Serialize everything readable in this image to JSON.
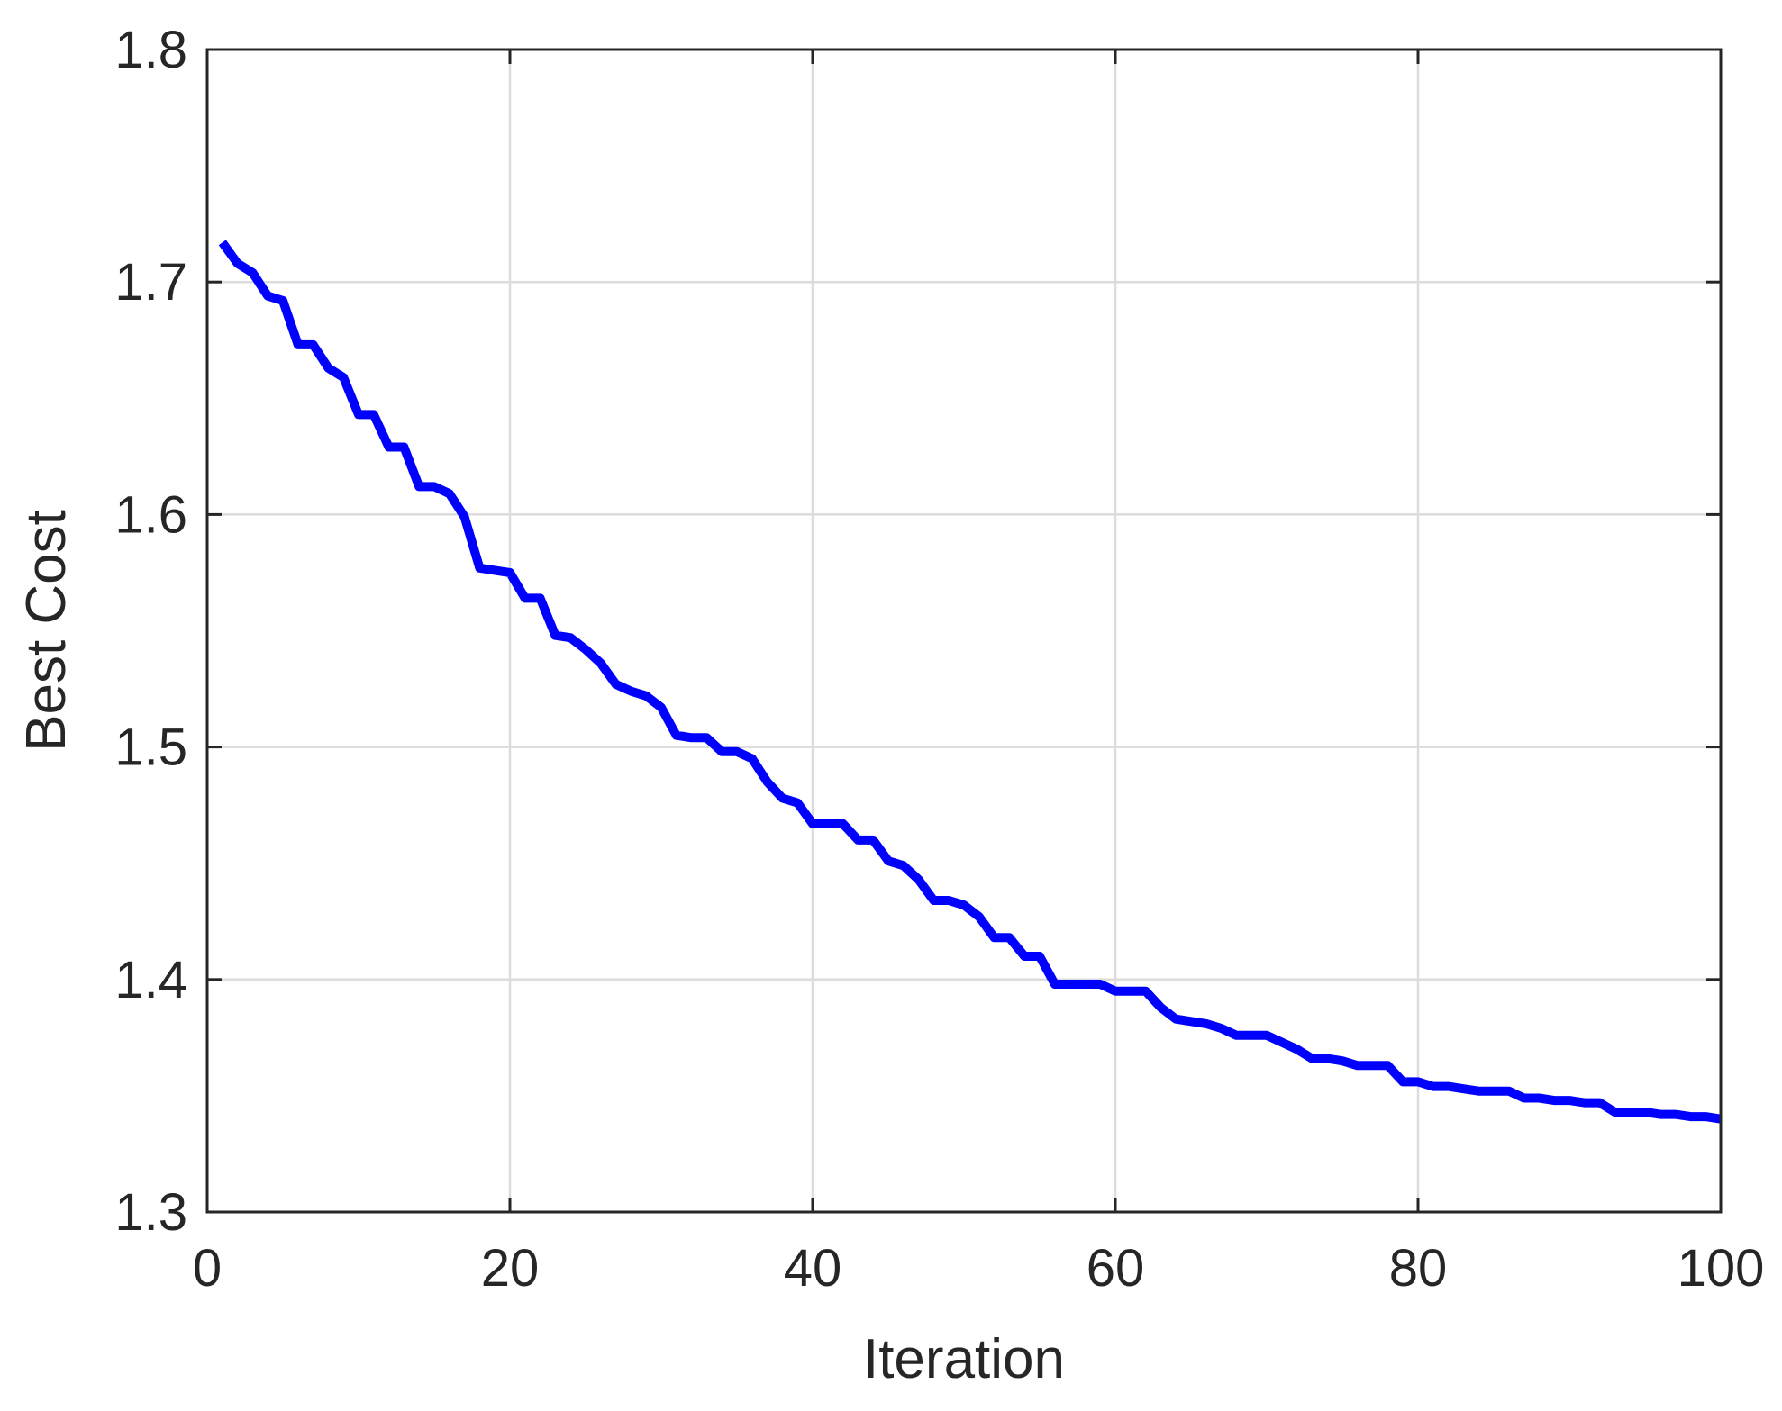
{
  "chart_data": {
    "type": "line",
    "title": "",
    "xlabel": "Iteration",
    "ylabel": "Best Cost",
    "xlim": [
      0,
      100
    ],
    "ylim": [
      1.3,
      1.8
    ],
    "xticks": [
      0,
      20,
      40,
      60,
      80,
      100
    ],
    "yticks": [
      1.3,
      1.4,
      1.5,
      1.6,
      1.7,
      1.8
    ],
    "xtick_labels": [
      "0",
      "20",
      "40",
      "60",
      "80",
      "100"
    ],
    "ytick_labels": [
      "1.3",
      "1.4",
      "1.5",
      "1.6",
      "1.7",
      "1.8"
    ],
    "grid": true,
    "series": [
      {
        "color": "#0000ff",
        "x": [
          1,
          2,
          3,
          4,
          5,
          6,
          7,
          8,
          9,
          10,
          11,
          12,
          13,
          14,
          15,
          16,
          17,
          18,
          19,
          20,
          21,
          22,
          23,
          24,
          25,
          26,
          27,
          28,
          29,
          30,
          31,
          32,
          33,
          34,
          35,
          36,
          37,
          38,
          39,
          40,
          41,
          42,
          43,
          44,
          45,
          46,
          47,
          48,
          49,
          50,
          51,
          52,
          53,
          54,
          55,
          56,
          57,
          58,
          59,
          60,
          61,
          62,
          63,
          64,
          65,
          66,
          67,
          68,
          69,
          70,
          71,
          72,
          73,
          74,
          75,
          76,
          77,
          78,
          79,
          80,
          81,
          82,
          83,
          84,
          85,
          86,
          87,
          88,
          89,
          90,
          91,
          92,
          93,
          94,
          95,
          96,
          97,
          98,
          99,
          100
        ],
        "y": [
          1.717,
          1.708,
          1.704,
          1.694,
          1.692,
          1.673,
          1.673,
          1.663,
          1.659,
          1.643,
          1.643,
          1.629,
          1.629,
          1.612,
          1.612,
          1.609,
          1.599,
          1.577,
          1.576,
          1.575,
          1.564,
          1.564,
          1.548,
          1.547,
          1.542,
          1.536,
          1.527,
          1.524,
          1.522,
          1.517,
          1.505,
          1.504,
          1.504,
          1.498,
          1.498,
          1.495,
          1.485,
          1.478,
          1.476,
          1.467,
          1.467,
          1.467,
          1.46,
          1.46,
          1.451,
          1.449,
          1.443,
          1.434,
          1.434,
          1.432,
          1.427,
          1.418,
          1.418,
          1.41,
          1.41,
          1.398,
          1.398,
          1.398,
          1.398,
          1.395,
          1.395,
          1.395,
          1.388,
          1.383,
          1.382,
          1.381,
          1.379,
          1.376,
          1.376,
          1.376,
          1.373,
          1.37,
          1.366,
          1.366,
          1.365,
          1.363,
          1.363,
          1.363,
          1.356,
          1.356,
          1.354,
          1.354,
          1.353,
          1.352,
          1.352,
          1.352,
          1.349,
          1.349,
          1.348,
          1.348,
          1.347,
          1.347,
          1.343,
          1.343,
          1.343,
          1.342,
          1.342,
          1.341,
          1.341,
          1.34
        ]
      }
    ]
  }
}
